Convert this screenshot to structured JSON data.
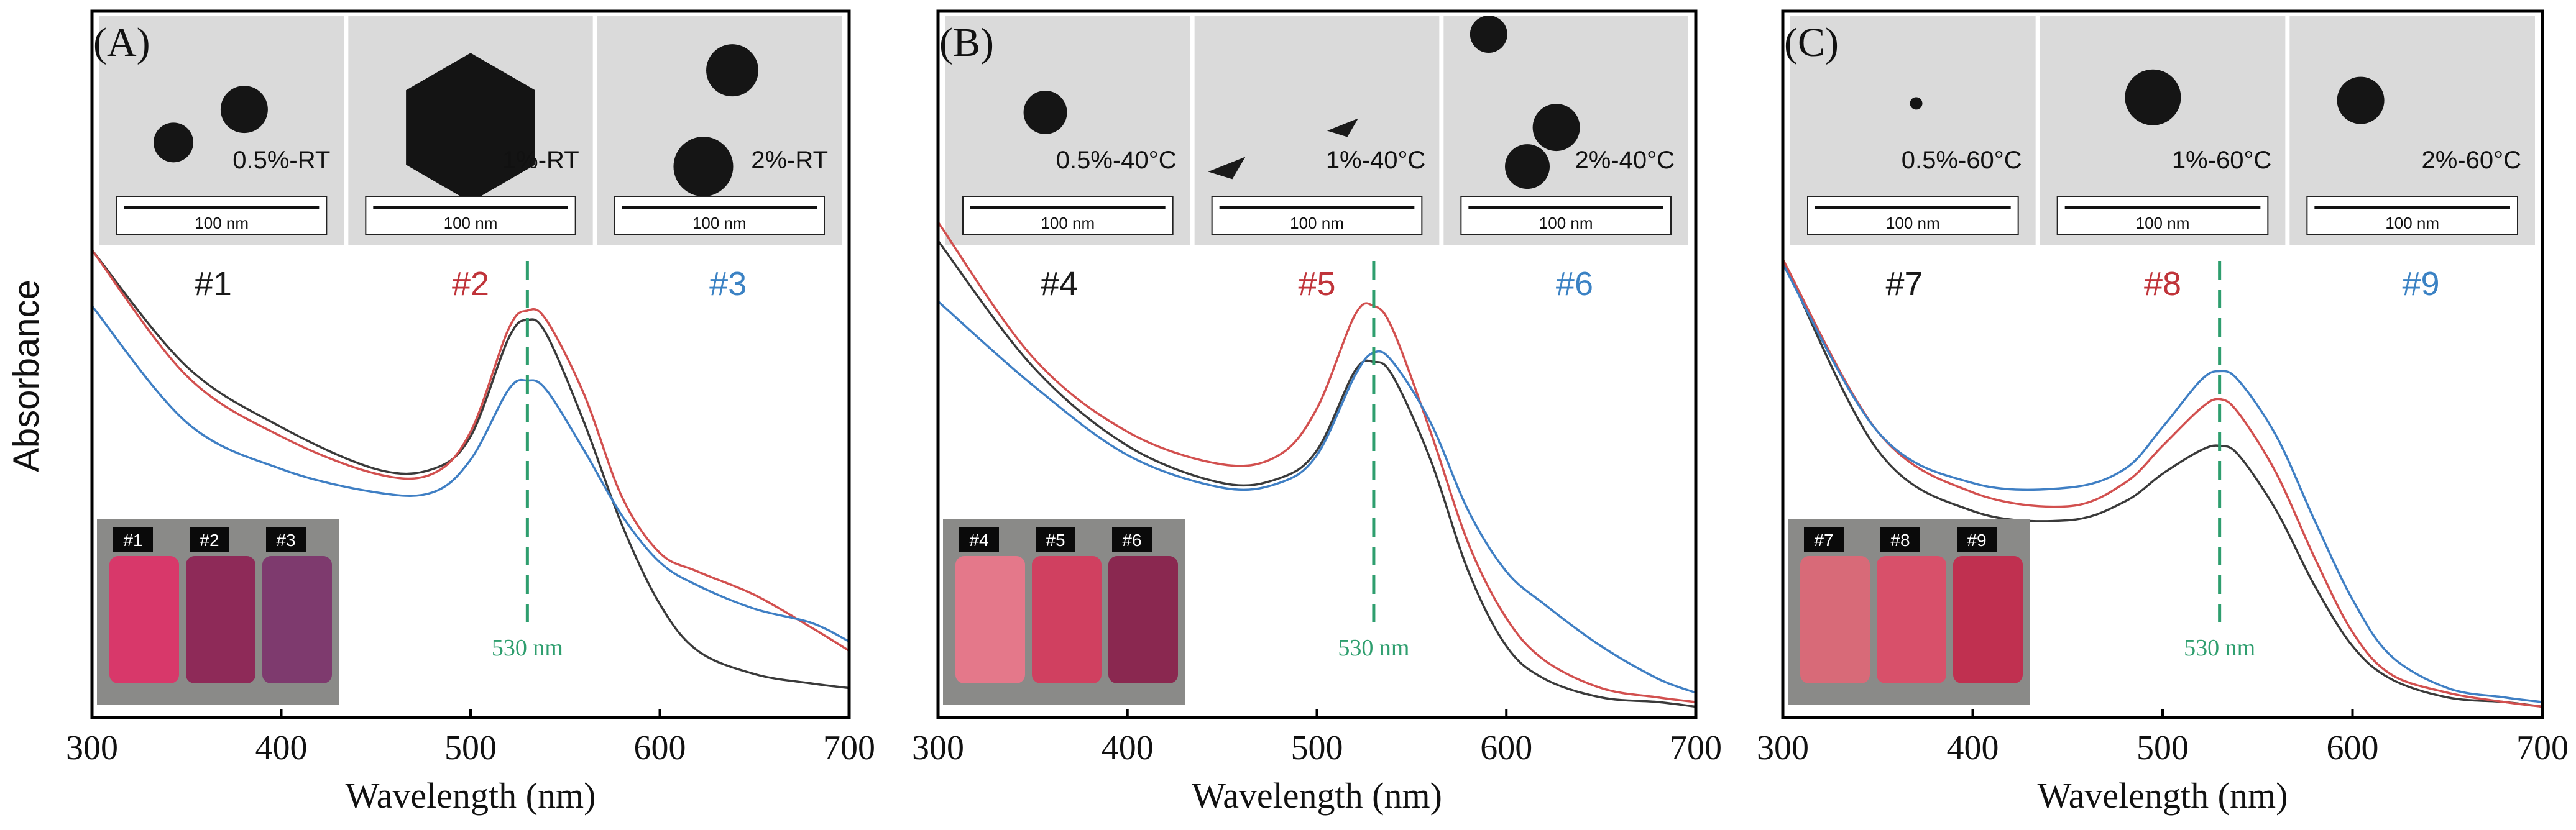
{
  "ylabel": "Absorbance",
  "series_colors": [
    "#3a3a3a",
    "#d2504f",
    "#3f7fc4"
  ],
  "inset_label_colors": [
    "#1a1a1a",
    "#c0343a",
    "#3b82c4"
  ],
  "peak_line_color": "#2e9e6e",
  "scale_bar_text": "100 nm",
  "chart_data": [
    {
      "type": "line",
      "panel_label": "(A)",
      "xlabel": "Wavelength (nm)",
      "ylabel": "Absorbance",
      "xlim": [
        300,
        700
      ],
      "x_ticks": [
        300,
        400,
        500,
        600,
        700
      ],
      "ylim": [
        0,
        1
      ],
      "y_ticks_shown": false,
      "grid": false,
      "legend": "none",
      "annotations": [
        {
          "text": "530 nm",
          "x": 530,
          "style": "dashed vertical line"
        }
      ],
      "sample_labels": [
        "#1",
        "#2",
        "#3"
      ],
      "tem_captions": [
        "0.5%-RT",
        "1%-RT",
        "2%-RT"
      ],
      "vial_labels": [
        "#1",
        "#2",
        "#3"
      ],
      "x": [
        300,
        350,
        400,
        450,
        480,
        500,
        520,
        530,
        540,
        560,
        580,
        600,
        620,
        650,
        680,
        700
      ],
      "series": [
        {
          "values": [
            0.99,
            0.74,
            0.61,
            0.52,
            0.52,
            0.59,
            0.8,
            0.84,
            0.81,
            0.62,
            0.4,
            0.23,
            0.13,
            0.08,
            0.06,
            0.05
          ]
        },
        {
          "values": [
            0.99,
            0.72,
            0.59,
            0.51,
            0.51,
            0.6,
            0.82,
            0.86,
            0.84,
            0.68,
            0.46,
            0.34,
            0.3,
            0.25,
            0.18,
            0.13
          ]
        },
        {
          "values": [
            0.87,
            0.62,
            0.52,
            0.47,
            0.47,
            0.54,
            0.69,
            0.71,
            0.69,
            0.56,
            0.42,
            0.32,
            0.27,
            0.22,
            0.19,
            0.15
          ]
        }
      ]
    },
    {
      "type": "line",
      "panel_label": "(B)",
      "xlabel": "Wavelength (nm)",
      "ylabel": "",
      "xlim": [
        300,
        700
      ],
      "x_ticks": [
        300,
        400,
        500,
        600,
        700
      ],
      "ylim": [
        0,
        1
      ],
      "y_ticks_shown": false,
      "grid": false,
      "legend": "none",
      "annotations": [
        {
          "text": "530 nm",
          "x": 530,
          "style": "dashed vertical line"
        }
      ],
      "sample_labels": [
        "#4",
        "#5",
        "#6"
      ],
      "tem_captions": [
        "0.5%-40°C",
        "1%-40°C",
        "2%-40°C"
      ],
      "vial_labels": [
        "#4",
        "#5",
        "#6"
      ],
      "x": [
        300,
        350,
        400,
        450,
        480,
        500,
        520,
        530,
        540,
        560,
        580,
        600,
        620,
        650,
        680,
        700
      ],
      "series": [
        {
          "values": [
            1.01,
            0.74,
            0.57,
            0.49,
            0.5,
            0.56,
            0.73,
            0.75,
            0.72,
            0.54,
            0.3,
            0.14,
            0.07,
            0.03,
            0.02,
            0.01
          ]
        },
        {
          "values": [
            1.05,
            0.76,
            0.6,
            0.53,
            0.55,
            0.65,
            0.85,
            0.87,
            0.82,
            0.6,
            0.36,
            0.2,
            0.11,
            0.05,
            0.03,
            0.02
          ]
        },
        {
          "values": [
            0.88,
            0.7,
            0.55,
            0.48,
            0.49,
            0.55,
            0.72,
            0.77,
            0.75,
            0.62,
            0.43,
            0.3,
            0.23,
            0.14,
            0.07,
            0.04
          ]
        }
      ]
    },
    {
      "type": "line",
      "panel_label": "(C)",
      "xlabel": "Wavelength (nm)",
      "ylabel": "",
      "xlim": [
        300,
        700
      ],
      "x_ticks": [
        300,
        400,
        500,
        600,
        700
      ],
      "ylim": [
        0,
        1
      ],
      "y_ticks_shown": false,
      "grid": false,
      "legend": "none",
      "annotations": [
        {
          "text": "530 nm",
          "x": 530,
          "style": "dashed vertical line"
        }
      ],
      "sample_labels": [
        "#7",
        "#8",
        "#9"
      ],
      "tem_captions": [
        "0.5%-60°C",
        "1%-60°C",
        "2%-60°C"
      ],
      "vial_labels": [
        "#7",
        "#8",
        "#9"
      ],
      "x": [
        300,
        350,
        400,
        450,
        480,
        500,
        520,
        530,
        540,
        560,
        580,
        600,
        620,
        650,
        680,
        700
      ],
      "series": [
        {
          "values": [
            0.97,
            0.56,
            0.43,
            0.41,
            0.45,
            0.51,
            0.56,
            0.57,
            0.55,
            0.43,
            0.27,
            0.14,
            0.07,
            0.03,
            0.02,
            0.01
          ]
        },
        {
          "values": [
            0.97,
            0.6,
            0.47,
            0.44,
            0.49,
            0.57,
            0.65,
            0.67,
            0.64,
            0.51,
            0.33,
            0.17,
            0.08,
            0.04,
            0.02,
            0.01
          ]
        },
        {
          "values": [
            0.96,
            0.6,
            0.49,
            0.48,
            0.52,
            0.61,
            0.71,
            0.73,
            0.71,
            0.59,
            0.41,
            0.24,
            0.12,
            0.05,
            0.03,
            0.02
          ]
        }
      ]
    }
  ]
}
